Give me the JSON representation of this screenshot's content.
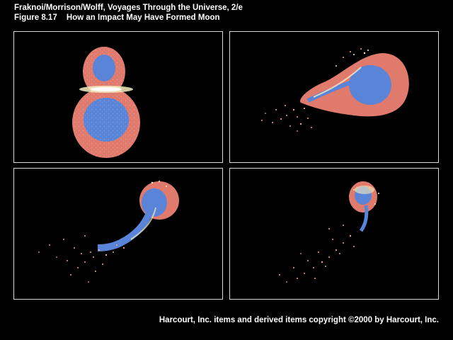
{
  "header": {
    "book": "Fraknoi/Morrison/Wolff, Voyages Through the Universe, 2/e",
    "figure_number": "Figure 8.17",
    "figure_title": "How an Impact May Have Formed Moon"
  },
  "footer": {
    "copyright": "Harcourt, Inc. items and derived items copyright ©2000 by Harcourt, Inc."
  },
  "colors": {
    "background": "#000000",
    "mantle": "#e07a6c",
    "core": "#5a84d8",
    "debris": "#f0a090",
    "hot_debris": "#f5eec0",
    "border": "#d8d8d8"
  }
}
